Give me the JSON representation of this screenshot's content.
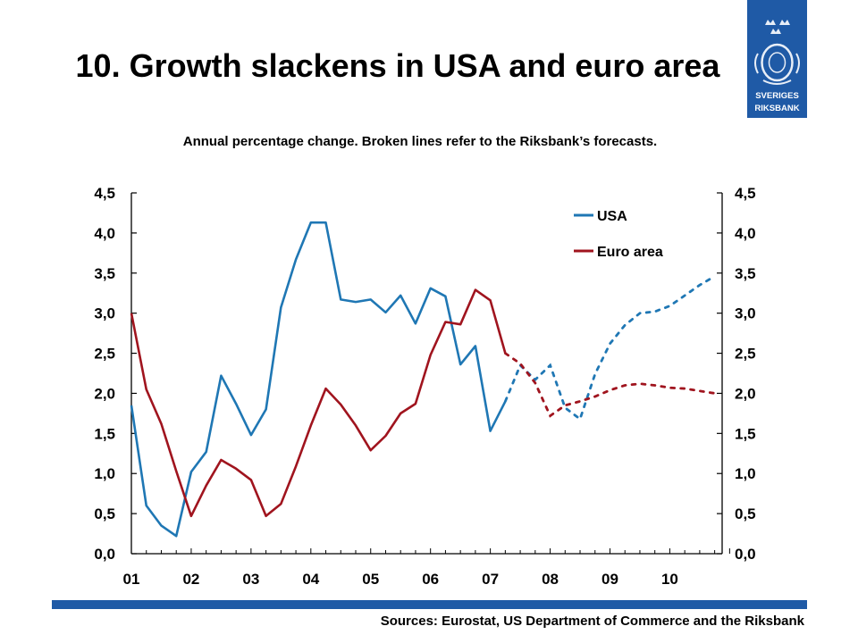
{
  "header": {
    "title": "10. Growth slackens in USA and euro area",
    "subtitle": "Annual percentage change. Broken lines refer to the Riksbank’s forecasts."
  },
  "logo": {
    "line1": "SVERIGES",
    "line2": "RIKSBANK",
    "color": "#1f5aa6"
  },
  "footer": {
    "sources": "Sources: Eurostat, US Department of Commerce and the Riksbank"
  },
  "colors": {
    "usa": "#1f77b4",
    "euro": "#a0141e"
  },
  "chart_data": {
    "type": "line",
    "title": "10. Growth slackens in USA and euro area",
    "subtitle": "Annual percentage change. Broken lines refer to the Riksbank’s forecasts.",
    "categories": [
      "01",
      "02",
      "03",
      "04",
      "05",
      "06",
      "07",
      "08",
      "09",
      "10"
    ],
    "y_ticks_left": [
      "0,0",
      "0,5",
      "1,0",
      "1,5",
      "2,0",
      "2,5",
      "3,0",
      "3,5",
      "4,0",
      "4,5"
    ],
    "y_ticks_right": [
      "0,0",
      "0,5",
      "1,0",
      "1,5",
      "2,0",
      "2,5",
      "3,0",
      "3,5",
      "4,0",
      "4,5"
    ],
    "ylim": [
      0,
      4.5
    ],
    "xlim": [
      2001.0,
      2010.875
    ],
    "legend_position": "top-right",
    "series": [
      {
        "name": "USA",
        "outcome": [
          [
            2001.0,
            1.85
          ],
          [
            2001.25,
            0.6
          ],
          [
            2001.5,
            0.35
          ],
          [
            2001.75,
            0.22
          ],
          [
            2002.0,
            1.02
          ],
          [
            2002.25,
            1.27
          ],
          [
            2002.5,
            2.22
          ],
          [
            2002.75,
            1.87
          ],
          [
            2003.0,
            1.48
          ],
          [
            2003.25,
            1.8
          ],
          [
            2003.5,
            3.07
          ],
          [
            2003.75,
            3.67
          ],
          [
            2004.0,
            4.13
          ],
          [
            2004.25,
            4.13
          ],
          [
            2004.5,
            3.17
          ],
          [
            2004.75,
            3.14
          ],
          [
            2005.0,
            3.17
          ],
          [
            2005.25,
            3.01
          ],
          [
            2005.5,
            3.22
          ],
          [
            2005.75,
            2.87
          ],
          [
            2006.0,
            3.31
          ],
          [
            2006.25,
            3.21
          ],
          [
            2006.5,
            2.36
          ],
          [
            2006.75,
            2.59
          ],
          [
            2007.0,
            1.53
          ],
          [
            2007.25,
            1.9
          ]
        ],
        "forecast": [
          [
            2007.25,
            1.9
          ],
          [
            2007.5,
            2.35
          ],
          [
            2007.75,
            2.17
          ],
          [
            2008.0,
            2.35
          ],
          [
            2008.25,
            1.82
          ],
          [
            2008.5,
            1.68
          ],
          [
            2008.75,
            2.24
          ],
          [
            2009.0,
            2.62
          ],
          [
            2009.25,
            2.85
          ],
          [
            2009.5,
            3.0
          ],
          [
            2009.75,
            3.02
          ],
          [
            2010.0,
            3.09
          ],
          [
            2010.25,
            3.22
          ],
          [
            2010.5,
            3.35
          ],
          [
            2010.75,
            3.46
          ]
        ]
      },
      {
        "name": "Euro area",
        "outcome": [
          [
            2001.0,
            3.0
          ],
          [
            2001.25,
            2.05
          ],
          [
            2001.5,
            1.62
          ],
          [
            2001.75,
            1.03
          ],
          [
            2002.0,
            0.47
          ],
          [
            2002.25,
            0.85
          ],
          [
            2002.5,
            1.17
          ],
          [
            2002.75,
            1.06
          ],
          [
            2003.0,
            0.92
          ],
          [
            2003.25,
            0.47
          ],
          [
            2003.5,
            0.62
          ],
          [
            2003.75,
            1.09
          ],
          [
            2004.0,
            1.6
          ],
          [
            2004.25,
            2.06
          ],
          [
            2004.5,
            1.86
          ],
          [
            2004.75,
            1.6
          ],
          [
            2005.0,
            1.29
          ],
          [
            2005.25,
            1.47
          ],
          [
            2005.5,
            1.75
          ],
          [
            2005.75,
            1.87
          ],
          [
            2006.0,
            2.48
          ],
          [
            2006.25,
            2.89
          ],
          [
            2006.5,
            2.86
          ],
          [
            2006.75,
            3.29
          ],
          [
            2007.0,
            3.16
          ],
          [
            2007.25,
            2.5
          ]
        ],
        "forecast": [
          [
            2007.25,
            2.5
          ],
          [
            2007.5,
            2.37
          ],
          [
            2007.75,
            2.13
          ],
          [
            2008.0,
            1.72
          ],
          [
            2008.25,
            1.85
          ],
          [
            2008.5,
            1.9
          ],
          [
            2008.75,
            1.96
          ],
          [
            2009.0,
            2.04
          ],
          [
            2009.25,
            2.1
          ],
          [
            2009.5,
            2.12
          ],
          [
            2009.75,
            2.1
          ],
          [
            2010.0,
            2.07
          ],
          [
            2010.25,
            2.06
          ],
          [
            2010.5,
            2.03
          ],
          [
            2010.75,
            2.0
          ]
        ]
      }
    ]
  }
}
